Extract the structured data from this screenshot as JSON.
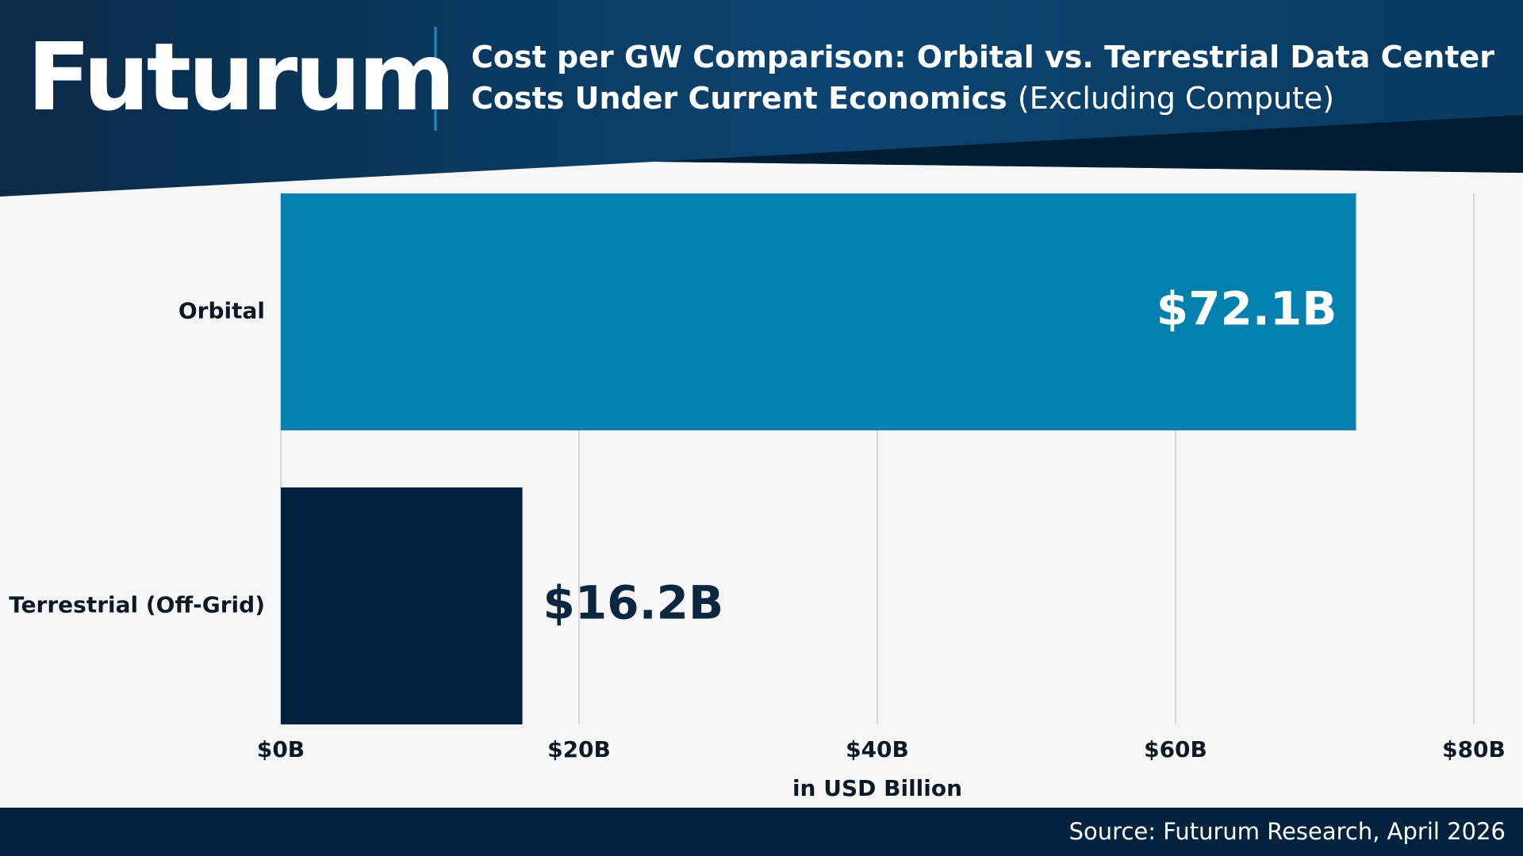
{
  "brand": "Futurum",
  "source": "Source: Futurum Research, April 2026",
  "chart_data": {
    "type": "barh",
    "title": "Cost per GW Comparison: Orbital vs. Terrestrial Data Center Costs Under Current Economics",
    "title_note": "(Excluding Compute)",
    "categories": [
      "Orbital",
      "Terrestrial (Off-Grid)"
    ],
    "values": [
      72.1,
      16.2
    ],
    "value_labels": [
      "$72.1B",
      "$16.2B"
    ],
    "colors": [
      "#0380ad",
      "#00223d"
    ],
    "xlabel": "in USD Billion",
    "xlim": [
      0,
      80
    ],
    "xticks": [
      {
        "value": 0,
        "label": "$0B"
      },
      {
        "value": 20,
        "label": "$20B"
      },
      {
        "value": 40,
        "label": "$40B"
      },
      {
        "value": 60,
        "label": "$60B"
      },
      {
        "value": 80,
        "label": "$80B"
      }
    ],
    "grid": true
  }
}
